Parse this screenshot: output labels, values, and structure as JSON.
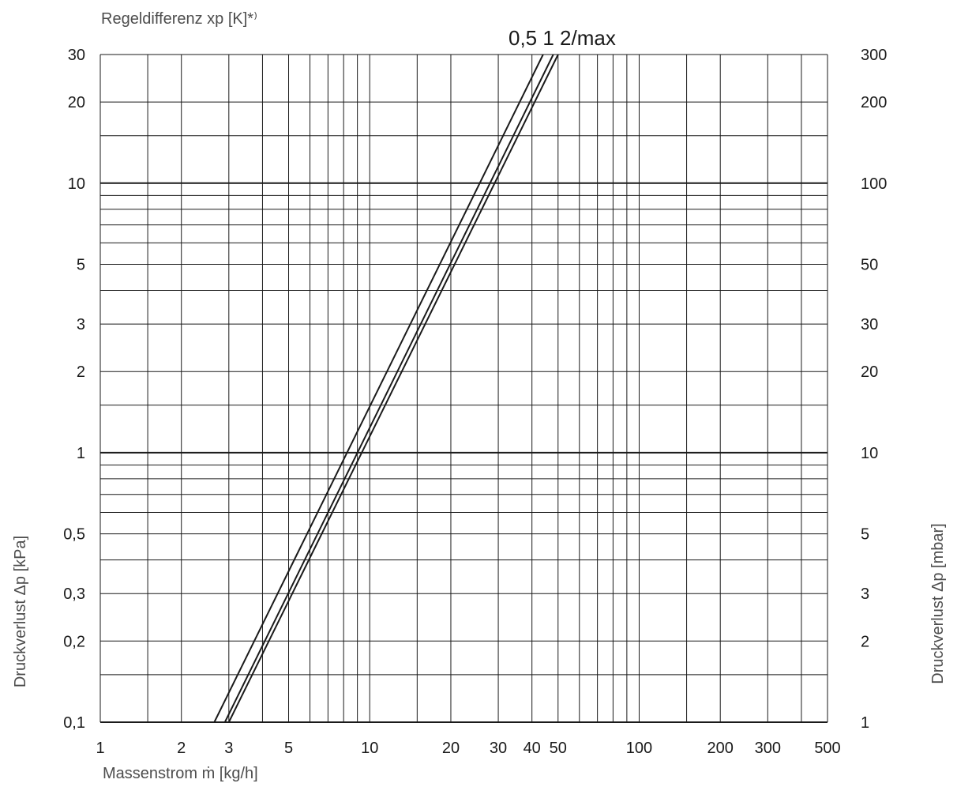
{
  "chart_data": {
    "type": "line",
    "xscale": "log",
    "yscale": "log",
    "xlim": [
      1,
      500
    ],
    "ylim": [
      0.1,
      30
    ],
    "y2lim": [
      1,
      300
    ],
    "grid": true,
    "top_label": "Regeldifferenz xp [K]*⁾",
    "xlabel": "Massenstrom ṁ [kg/h]",
    "ylabel": "Druckverlust Δp [kPa]",
    "y2label": "Druckverlust Δp [mbar]",
    "curve_labels": "0,5 1 2/max",
    "x_ticks": [
      {
        "value": 1,
        "label": "1"
      },
      {
        "value": 2,
        "label": "2"
      },
      {
        "value": 3,
        "label": "3"
      },
      {
        "value": 5,
        "label": "5"
      },
      {
        "value": 10,
        "label": "10"
      },
      {
        "value": 20,
        "label": "20"
      },
      {
        "value": 30,
        "label": "30"
      },
      {
        "value": 40,
        "label": "40"
      },
      {
        "value": 50,
        "label": "50"
      },
      {
        "value": 100,
        "label": "100"
      },
      {
        "value": 200,
        "label": "200"
      },
      {
        "value": 300,
        "label": "300"
      },
      {
        "value": 500,
        "label": "500"
      }
    ],
    "y_ticks": [
      {
        "value": 0.1,
        "label": "0,1"
      },
      {
        "value": 0.2,
        "label": "0,2"
      },
      {
        "value": 0.3,
        "label": "0,3"
      },
      {
        "value": 0.5,
        "label": "0,5"
      },
      {
        "value": 1,
        "label": "1"
      },
      {
        "value": 2,
        "label": "2"
      },
      {
        "value": 3,
        "label": "3"
      },
      {
        "value": 5,
        "label": "5"
      },
      {
        "value": 10,
        "label": "10"
      },
      {
        "value": 20,
        "label": "20"
      },
      {
        "value": 30,
        "label": "30"
      }
    ],
    "y2_ticks": [
      {
        "value": 1,
        "label": "1"
      },
      {
        "value": 2,
        "label": "2"
      },
      {
        "value": 3,
        "label": "3"
      },
      {
        "value": 5,
        "label": "5"
      },
      {
        "value": 10,
        "label": "10"
      },
      {
        "value": 20,
        "label": "20"
      },
      {
        "value": 30,
        "label": "30"
      },
      {
        "value": 50,
        "label": "50"
      },
      {
        "value": 100,
        "label": "100"
      },
      {
        "value": 200,
        "label": "200"
      },
      {
        "value": 300,
        "label": "300"
      }
    ],
    "x_grid": [
      1,
      1.5,
      2,
      3,
      4,
      5,
      6,
      7,
      8,
      9,
      10,
      15,
      20,
      30,
      40,
      50,
      60,
      70,
      80,
      90,
      100,
      150,
      200,
      300,
      400,
      500
    ],
    "y_grid": [
      0.1,
      0.15,
      0.2,
      0.3,
      0.4,
      0.5,
      0.6,
      0.7,
      0.8,
      0.9,
      1,
      1.5,
      2,
      3,
      4,
      5,
      6,
      7,
      8,
      9,
      10,
      15,
      20,
      30
    ],
    "y_grid_major": [
      1,
      10
    ],
    "series": [
      {
        "name": "0,5",
        "x": [
          2.65,
          44
        ],
        "y": [
          0.1,
          30
        ]
      },
      {
        "name": "1",
        "x": [
          2.9,
          48
        ],
        "y": [
          0.1,
          30
        ]
      },
      {
        "name": "2/max",
        "x": [
          3.0,
          50
        ],
        "y": [
          0.1,
          30
        ]
      }
    ]
  }
}
